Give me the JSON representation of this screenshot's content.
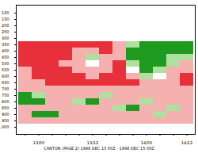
{
  "chart_data": {
    "type": "heatmap",
    "caption": "CANTON (PAGE 2) 1998 DEC 13 00Z - 1998 DEC 15 00Z",
    "categories": [
      null,
      "13/00",
      null,
      null,
      null,
      "13/12",
      null,
      null,
      null,
      "14/00",
      null,
      null,
      "14/12"
    ],
    "y": [
      100,
      150,
      200,
      250,
      300,
      350,
      400,
      450,
      500,
      550,
      600,
      650,
      700,
      750,
      800,
      850,
      900,
      950,
      1000
    ],
    "yticks": [
      100,
      150,
      200,
      250,
      300,
      350,
      400,
      450,
      500,
      550,
      600,
      650,
      700,
      750,
      800,
      850,
      900,
      950,
      1000
    ],
    "cells": [
      [
        50,
        50,
        50,
        50,
        50,
        50,
        50,
        50,
        50,
        50,
        50,
        50,
        50
      ],
      [
        50,
        50,
        50,
        50,
        50,
        50,
        50,
        50,
        50,
        50,
        50,
        50,
        50
      ],
      [
        50,
        50,
        50,
        50,
        50,
        50,
        50,
        50,
        50,
        50,
        50,
        50,
        50
      ],
      [
        50,
        50,
        50,
        50,
        50,
        50,
        50,
        50,
        50,
        50,
        50,
        50,
        50
      ],
      [
        50,
        50,
        50,
        50,
        50,
        50,
        50,
        50,
        50,
        50,
        50,
        50,
        50
      ],
      [
        15,
        15,
        15,
        15,
        15,
        15,
        15,
        25,
        70,
        85,
        85,
        85,
        85
      ],
      [
        10,
        10,
        12,
        15,
        20,
        30,
        15,
        30,
        85,
        90,
        90,
        85,
        80
      ],
      [
        12,
        10,
        10,
        15,
        25,
        70,
        30,
        20,
        85,
        90,
        88,
        70,
        60
      ],
      [
        15,
        12,
        10,
        20,
        30,
        50,
        25,
        15,
        70,
        85,
        80,
        60,
        35
      ],
      [
        20,
        15,
        12,
        15,
        25,
        35,
        20,
        15,
        40,
        85,
        75,
        30,
        25
      ],
      [
        25,
        18,
        15,
        12,
        15,
        20,
        15,
        12,
        20,
        60,
        50,
        20,
        15
      ],
      [
        30,
        25,
        18,
        15,
        12,
        10,
        10,
        12,
        15,
        25,
        30,
        20,
        18
      ],
      [
        35,
        30,
        25,
        30,
        35,
        28,
        25,
        30,
        35,
        30,
        28,
        25,
        30
      ],
      [
        85,
        70,
        35,
        30,
        25,
        30,
        70,
        35,
        30,
        25,
        30,
        35,
        30
      ],
      [
        90,
        85,
        30,
        25,
        70,
        85,
        30,
        25,
        35,
        65,
        30,
        25,
        35
      ],
      [
        30,
        35,
        25,
        30,
        35,
        30,
        25,
        75,
        85,
        30,
        25,
        65,
        30
      ],
      [
        25,
        85,
        90,
        30,
        25,
        30,
        35,
        30,
        25,
        30,
        70,
        35,
        30
      ],
      [
        30,
        25,
        35,
        30,
        25,
        20,
        30,
        35,
        30,
        25,
        30,
        35,
        30
      ],
      [
        50,
        50,
        50,
        50,
        50,
        50,
        50,
        50,
        50,
        50,
        50,
        50,
        50
      ]
    ],
    "contour_levels": [
      20,
      40,
      60,
      80
    ],
    "colors": [
      "#e8303a",
      "#f5b0b0",
      "#ffffff",
      "#b0e0a0",
      "#1e9a1e"
    ]
  }
}
